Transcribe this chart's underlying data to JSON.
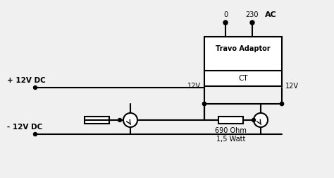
{
  "bg_color": "#f0f0f0",
  "line_color": "#000000",
  "line_width": 1.5,
  "box_color": "#ffffff",
  "text_color": "#000000",
  "title": "",
  "labels": {
    "plus12v": "+ 12V DC",
    "minus12v": "- 12V DC",
    "ac": "AC",
    "zero": "0",
    "v230": "230",
    "travo": "Travo Adaptor",
    "ct": "CT",
    "12v_left": "12V",
    "12v_right": "12V",
    "resistor_label": "690 Ohm\n1,5 Watt"
  }
}
